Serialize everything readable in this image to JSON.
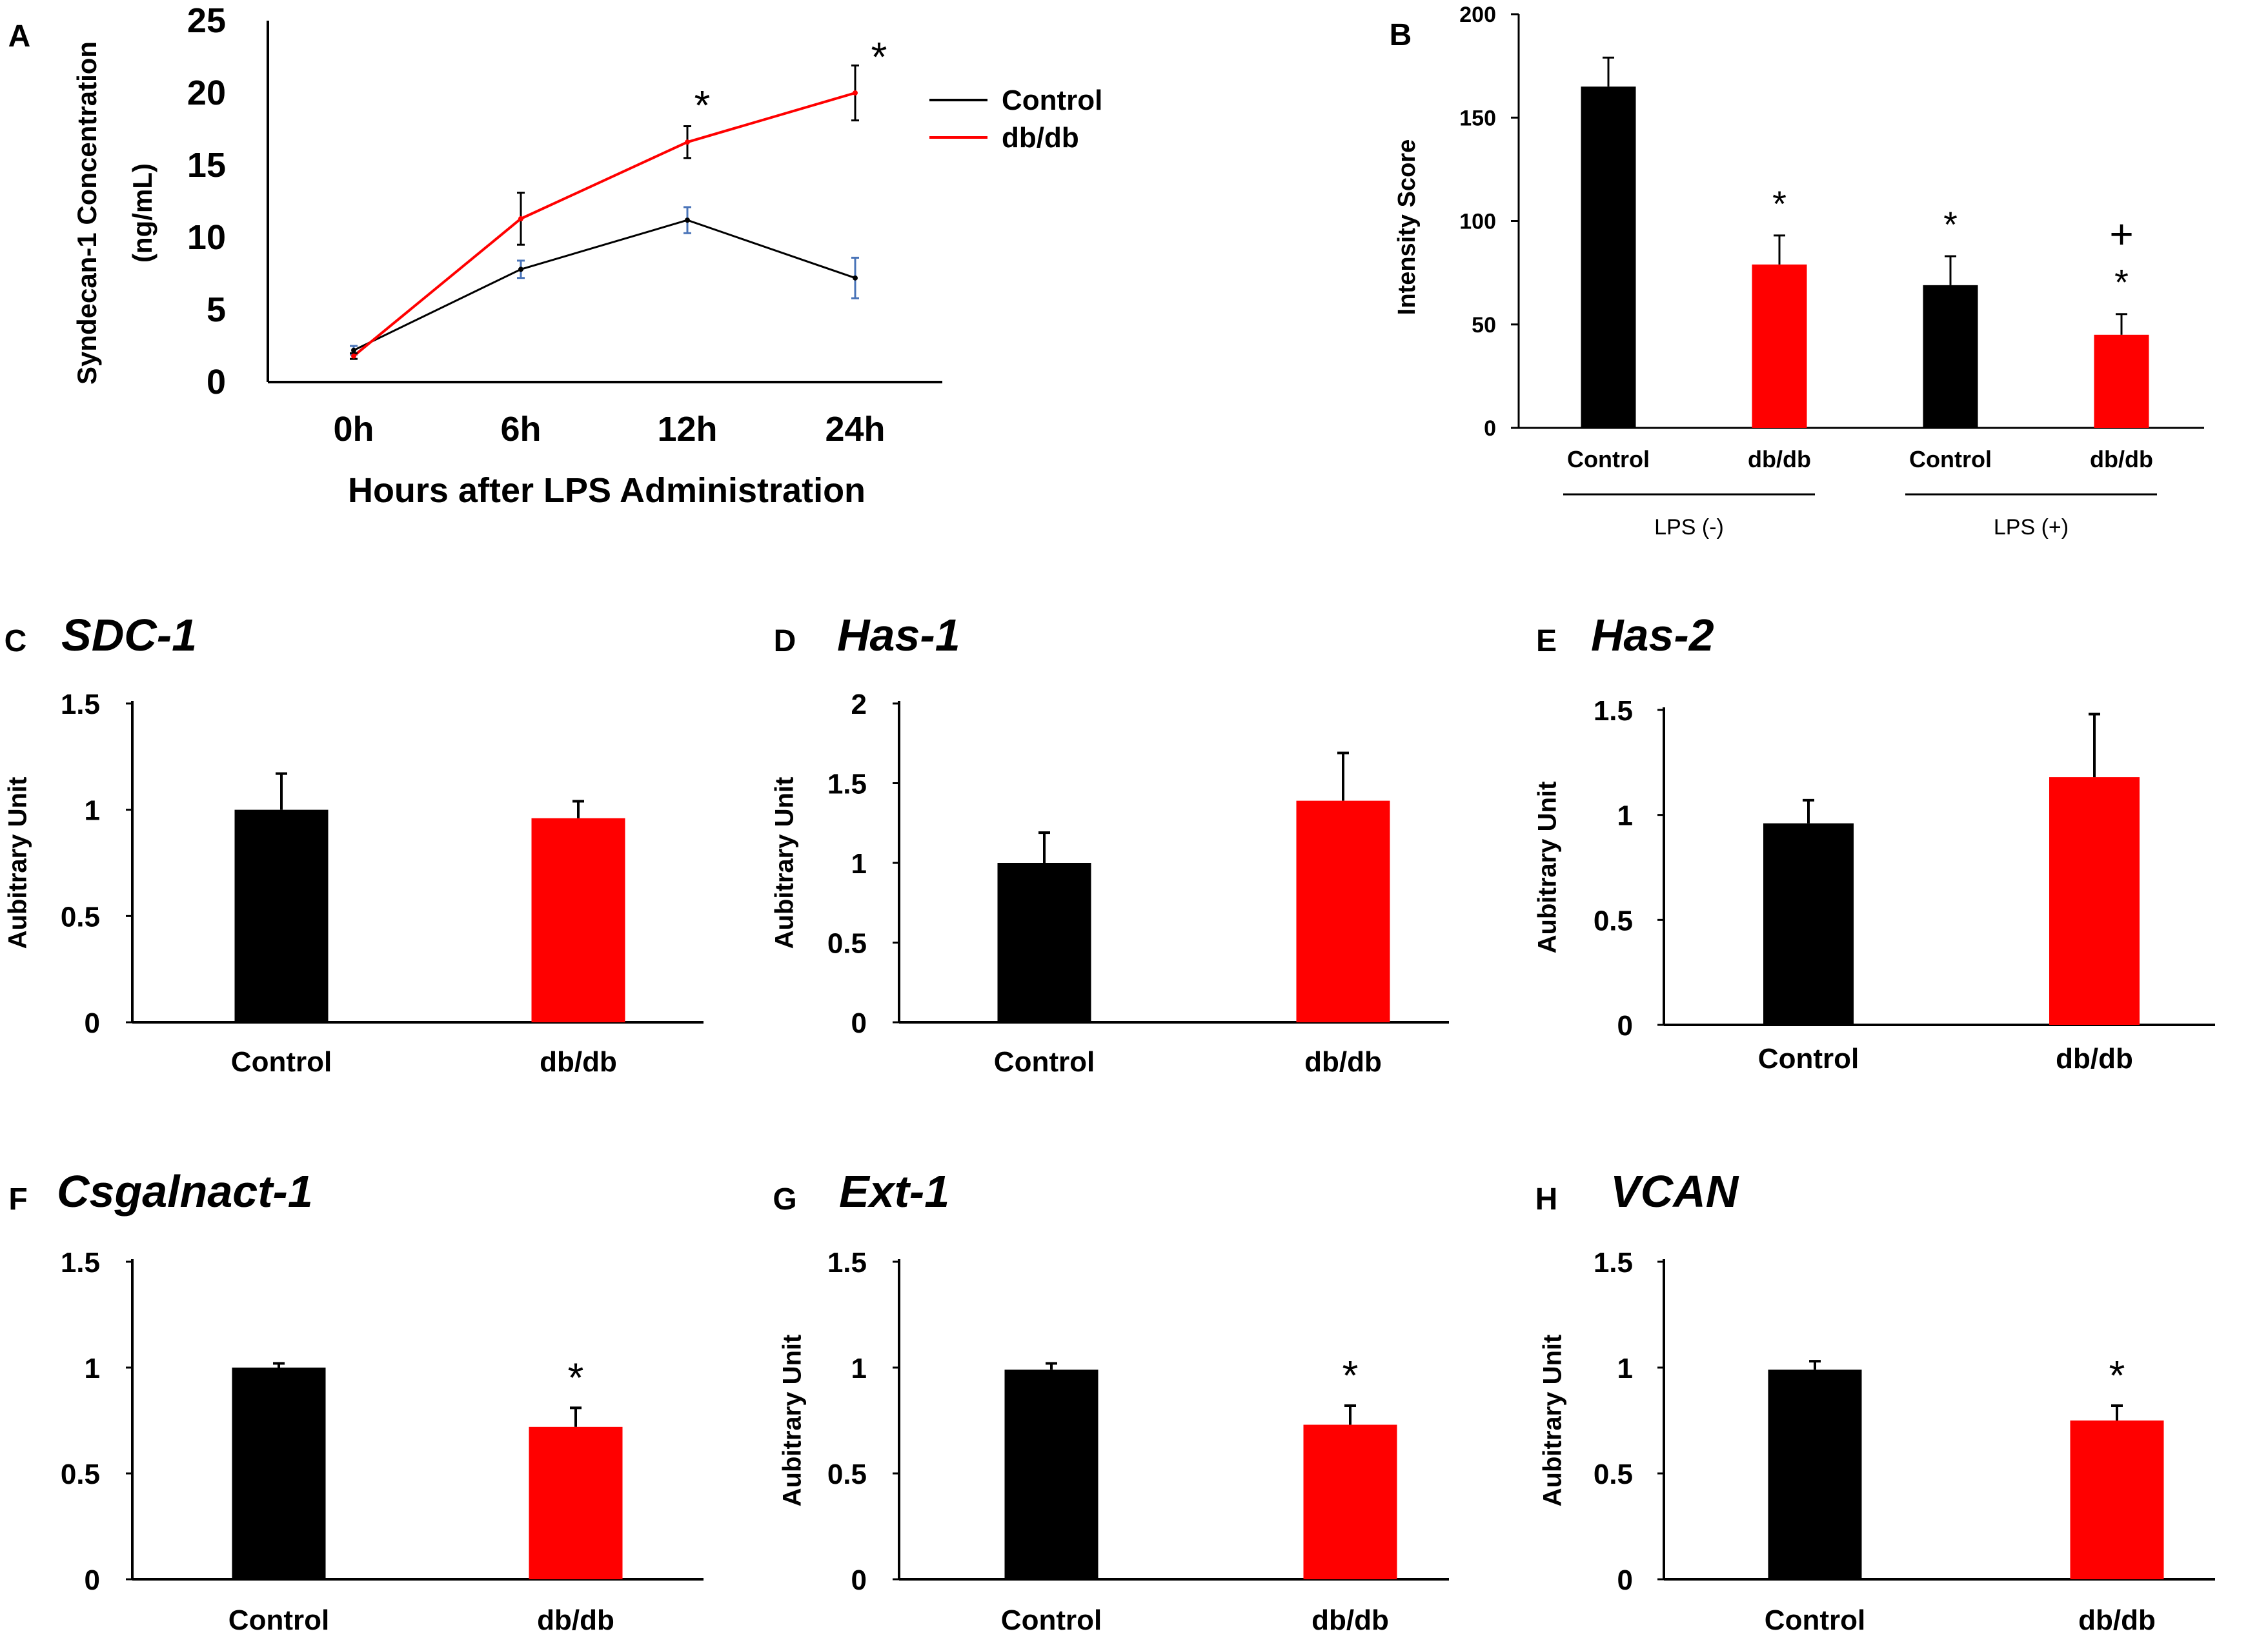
{
  "colors": {
    "control": "#000000",
    "dbdb": "#ff0000",
    "axis": "#000000",
    "control_line_errorbar": "#4a74b8"
  },
  "chart_data": [
    {
      "panel": "A",
      "type": "line",
      "categories": [
        "0h",
        "6h",
        "12h",
        "24h"
      ],
      "series": [
        {
          "name": "Control",
          "color_key": "control",
          "values": [
            2.2,
            7.8,
            11.2,
            7.2
          ],
          "errors": [
            0.3,
            0.6,
            0.9,
            1.4
          ]
        },
        {
          "name": "db/db",
          "color_key": "dbdb",
          "values": [
            1.8,
            11.3,
            16.6,
            20.0
          ],
          "errors": [
            0.2,
            1.8,
            1.1,
            1.9
          ]
        }
      ],
      "yticks": [
        "0",
        "5",
        "10",
        "15",
        "20",
        "25"
      ],
      "ylim": [
        0,
        25
      ],
      "ylabel_line1": "Syndecan-1 Concentration",
      "ylabel_line2": "(ng/mL)",
      "xlabel": "Hours after LPS Administration",
      "significance": [
        {
          "category": "12h",
          "mark": "*"
        },
        {
          "category": "24h",
          "mark": "*"
        }
      ],
      "legend": [
        "Control",
        "db/db"
      ]
    },
    {
      "panel": "B",
      "type": "bar",
      "categories": [
        "Control",
        "db/db",
        "Control",
        "db/db"
      ],
      "colors": [
        "control",
        "dbdb",
        "control",
        "dbdb"
      ],
      "values": [
        165,
        79,
        69,
        45
      ],
      "errors": [
        14,
        14,
        14,
        10
      ],
      "yticks": [
        "0",
        "50",
        "100",
        "150",
        "200"
      ],
      "ylim": [
        0,
        200
      ],
      "ylabel": "Intensity Score",
      "groups": [
        {
          "label": "LPS (-)",
          "from": 0,
          "to": 1
        },
        {
          "label": "LPS (+)",
          "from": 2,
          "to": 3
        }
      ],
      "significance": [
        {
          "index": 1,
          "marks": [
            "*"
          ]
        },
        {
          "index": 2,
          "marks": [
            "*"
          ]
        },
        {
          "index": 3,
          "marks": [
            "*",
            "+"
          ]
        }
      ]
    },
    {
      "panel": "C",
      "title": "SDC-1",
      "type": "bar",
      "categories": [
        "Control",
        "db/db"
      ],
      "values": [
        1.0,
        0.96
      ],
      "errors": [
        0.17,
        0.08
      ],
      "yticks": [
        "0",
        "0.5",
        "1",
        "1.5"
      ],
      "ylim": [
        0,
        1.5
      ],
      "ylabel": "Aubitrary Unit",
      "significance": []
    },
    {
      "panel": "D",
      "title": "Has-1",
      "type": "bar",
      "categories": [
        "Control",
        "db/db"
      ],
      "values": [
        1.0,
        1.39
      ],
      "errors": [
        0.19,
        0.3
      ],
      "yticks": [
        "0",
        "0.5",
        "1",
        "1.5",
        "2"
      ],
      "ylim": [
        0,
        2
      ],
      "ylabel": "Aubitrary Unit",
      "significance": []
    },
    {
      "panel": "E",
      "title": "Has-2",
      "type": "bar",
      "categories": [
        "Control",
        "db/db"
      ],
      "values": [
        0.96,
        1.18
      ],
      "errors": [
        0.11,
        0.3
      ],
      "yticks": [
        "0",
        "0.5",
        "1",
        "1.5"
      ],
      "ylim": [
        0,
        1.5
      ],
      "ylabel": "Aubitrary Unit",
      "significance": []
    },
    {
      "panel": "F",
      "title": "Csgalnact-1",
      "type": "bar",
      "categories": [
        "Control",
        "db/db"
      ],
      "values": [
        1.0,
        0.72
      ],
      "errors": [
        0.02,
        0.09
      ],
      "yticks": [
        "0",
        "0.5",
        "1",
        "1.5"
      ],
      "ylim": [
        0,
        1.5
      ],
      "ylabel": "",
      "significance": [
        {
          "index": 1,
          "marks": [
            "*"
          ]
        }
      ]
    },
    {
      "panel": "G",
      "title": "Ext-1",
      "type": "bar",
      "categories": [
        "Control",
        "db/db"
      ],
      "values": [
        0.99,
        0.73
      ],
      "errors": [
        0.03,
        0.09
      ],
      "yticks": [
        "0",
        "0.5",
        "1",
        "1.5"
      ],
      "ylim": [
        0,
        1.5
      ],
      "ylabel": "Aubitrary Unit",
      "significance": [
        {
          "index": 1,
          "marks": [
            "*"
          ]
        }
      ]
    },
    {
      "panel": "H",
      "title": "VCAN",
      "type": "bar",
      "categories": [
        "Control",
        "db/db"
      ],
      "values": [
        0.99,
        0.75
      ],
      "errors": [
        0.04,
        0.07
      ],
      "yticks": [
        "0",
        "0.5",
        "1",
        "1.5"
      ],
      "ylim": [
        0,
        1.5
      ],
      "ylabel": "Aubitrary Unit",
      "significance": [
        {
          "index": 1,
          "marks": [
            "*"
          ]
        }
      ]
    }
  ]
}
